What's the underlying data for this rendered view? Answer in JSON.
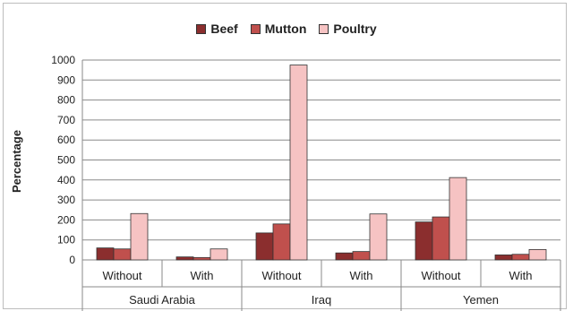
{
  "chart_data": {
    "type": "bar",
    "title": "",
    "ylabel": "Percentage",
    "xlabel": "",
    "ylim": [
      0,
      1000
    ],
    "yticks": [
      0,
      100,
      200,
      300,
      400,
      500,
      600,
      700,
      800,
      900,
      1000
    ],
    "grid": true,
    "legend_position": "top",
    "groups": [
      {
        "name": "Saudi Arabia",
        "categories": [
          "Without",
          "With"
        ]
      },
      {
        "name": "Iraq",
        "categories": [
          "Without",
          "With"
        ]
      },
      {
        "name": "Yemen",
        "categories": [
          "Without",
          "With"
        ]
      }
    ],
    "series": [
      {
        "name": "Beef",
        "color": "#8b2e2e",
        "values": [
          60,
          15,
          135,
          35,
          190,
          25
        ]
      },
      {
        "name": "Mutton",
        "color": "#c0504d",
        "values": [
          55,
          12,
          180,
          42,
          215,
          28
        ]
      },
      {
        "name": "Poultry",
        "color": "#f6c3c3",
        "values": [
          232,
          55,
          975,
          230,
          412,
          52
        ]
      }
    ]
  }
}
